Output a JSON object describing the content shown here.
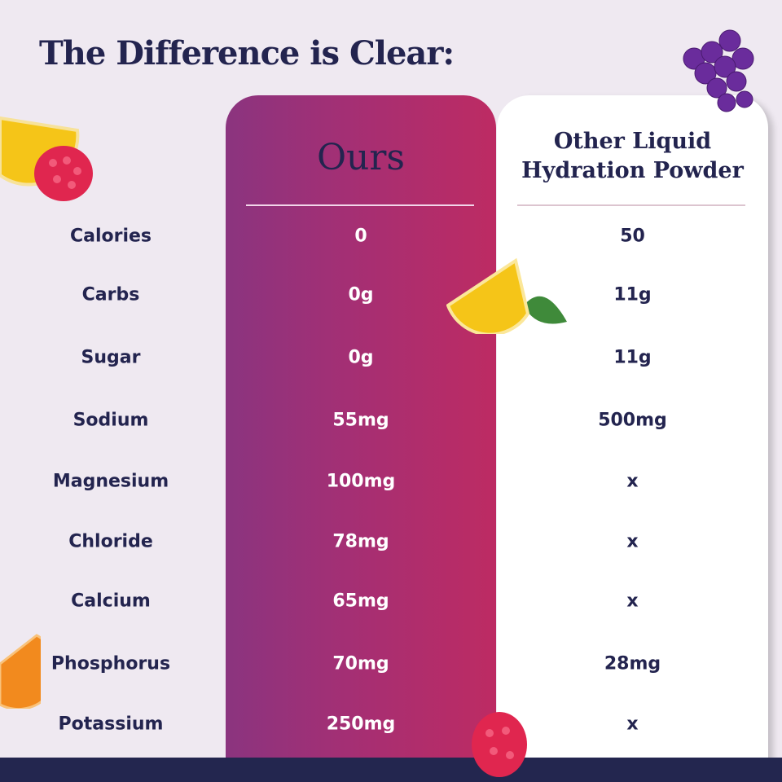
{
  "title": "The Difference is Clear:",
  "columns": {
    "ours": "Ours",
    "other_line1": "Other Liquid",
    "other_line2": "Hydration Powder"
  },
  "rows": [
    {
      "label": "Calories",
      "ours": "0",
      "other": "50"
    },
    {
      "label": "Carbs",
      "ours": "0g",
      "other": "11g"
    },
    {
      "label": "Sugar",
      "ours": "0g",
      "other": "11g"
    },
    {
      "label": "Sodium",
      "ours": "55mg",
      "other": "500mg"
    },
    {
      "label": "Magnesium",
      "ours": "100mg",
      "other": "x"
    },
    {
      "label": "Chloride",
      "ours": "78mg",
      "other": "x"
    },
    {
      "label": "Calcium",
      "ours": "65mg",
      "other": "x"
    },
    {
      "label": "Phosphorus",
      "ours": "70mg",
      "other": "28mg"
    },
    {
      "label": "Potassium",
      "ours": "250mg",
      "other": "x"
    }
  ],
  "colors": {
    "navy": "#23244f",
    "ours_gradient_start": "#8b347f",
    "ours_gradient_end": "#bd2b63",
    "background": "#efe9f1"
  },
  "decorations": [
    "grapes-icon",
    "lemon-icon",
    "raspberry-icon",
    "orange-icon"
  ]
}
